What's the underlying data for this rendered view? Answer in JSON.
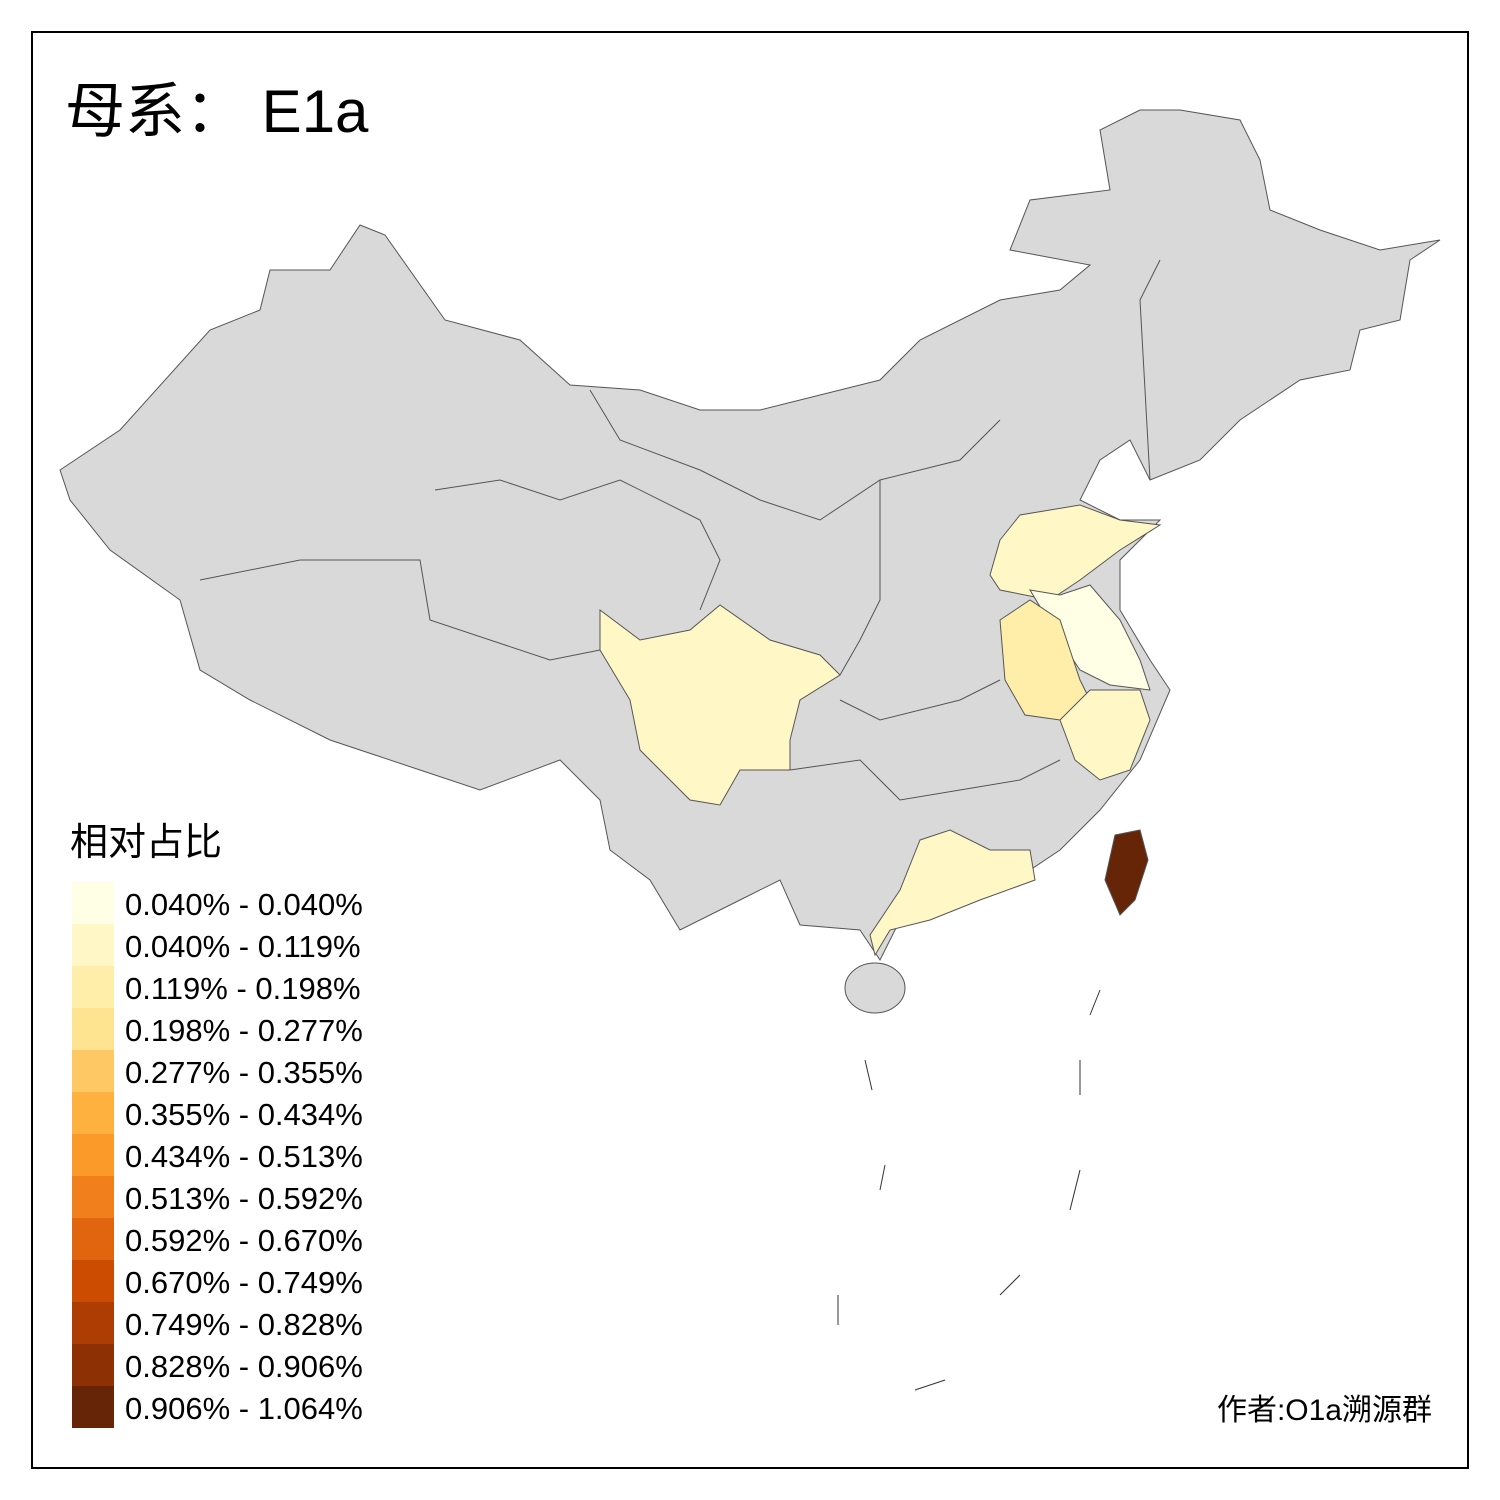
{
  "title": "母系： E1a",
  "legend": {
    "title": "相对占比",
    "items": [
      {
        "label": "0.040% - 0.040%",
        "color": "#ffffe5"
      },
      {
        "label": "0.040% - 0.119%",
        "color": "#fff7c6"
      },
      {
        "label": "0.119% - 0.198%",
        "color": "#feeeaa"
      },
      {
        "label": "0.198% - 0.277%",
        "color": "#fee391"
      },
      {
        "label": "0.277% - 0.355%",
        "color": "#fec965"
      },
      {
        "label": "0.355% - 0.434%",
        "color": "#feb13e"
      },
      {
        "label": "0.434% - 0.513%",
        "color": "#fb9a29"
      },
      {
        "label": "0.513% - 0.592%",
        "color": "#f07f1c"
      },
      {
        "label": "0.592% - 0.670%",
        "color": "#e1640e"
      },
      {
        "label": "0.670% - 0.749%",
        "color": "#cc4c02"
      },
      {
        "label": "0.749% - 0.828%",
        "color": "#ae3d03"
      },
      {
        "label": "0.828% - 0.906%",
        "color": "#8d3004"
      },
      {
        "label": "0.906% - 1.064%",
        "color": "#662506"
      }
    ]
  },
  "author": "作者:O1a溯源群"
}
